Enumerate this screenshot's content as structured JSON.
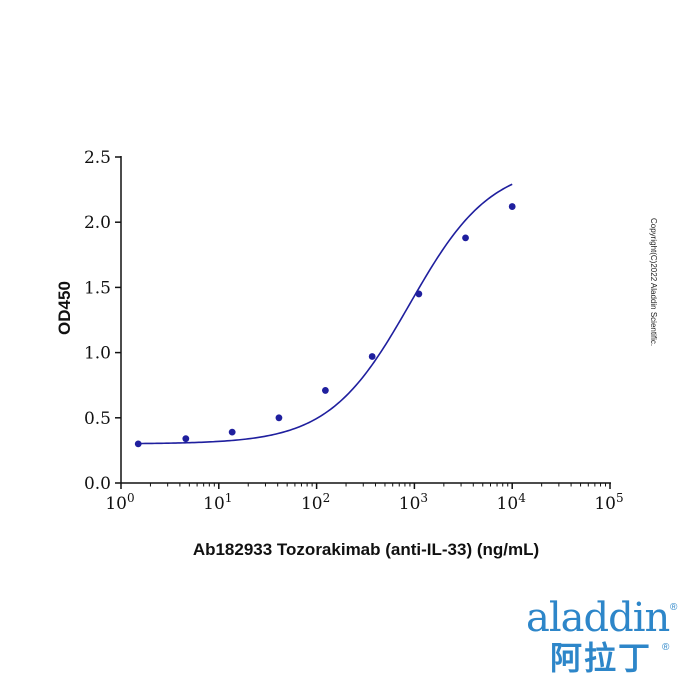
{
  "chart_data": {
    "type": "scatter",
    "xlabel": "Ab182933 Tozorakimab (anti-IL-33) (ng/mL)",
    "ylabel": "OD450",
    "xscale": "log",
    "xlim": [
      1,
      100000
    ],
    "ylim": [
      0,
      2.5
    ],
    "x_ticks": [
      {
        "base": "10",
        "exp": "0"
      },
      {
        "base": "10",
        "exp": "1"
      },
      {
        "base": "10",
        "exp": "2"
      },
      {
        "base": "10",
        "exp": "3"
      },
      {
        "base": "10",
        "exp": "4"
      },
      {
        "base": "10",
        "exp": "5"
      }
    ],
    "y_ticks": [
      "0.0",
      "0.5",
      "1.0",
      "1.5",
      "2.0",
      "2.5"
    ],
    "y_tick_values": [
      0,
      0.5,
      1.0,
      1.5,
      2.0,
      2.5
    ],
    "grid": false,
    "legend": "none",
    "series": [
      {
        "x": [
          1.5,
          4.6,
          13.7,
          41.2,
          123,
          370,
          1111,
          3333,
          10000
        ],
        "y": [
          0.3,
          0.34,
          0.39,
          0.5,
          0.71,
          0.97,
          1.45,
          1.88,
          2.12
        ],
        "fit": "4PL",
        "color": "#1f1f9e"
      }
    ]
  },
  "copyright": "Copyright(C)2022 Aladdin Scientific.",
  "logo": {
    "latin": "aladdin",
    "cjk": "阿拉丁",
    "reg": "®",
    "color": "#2d86c9"
  }
}
